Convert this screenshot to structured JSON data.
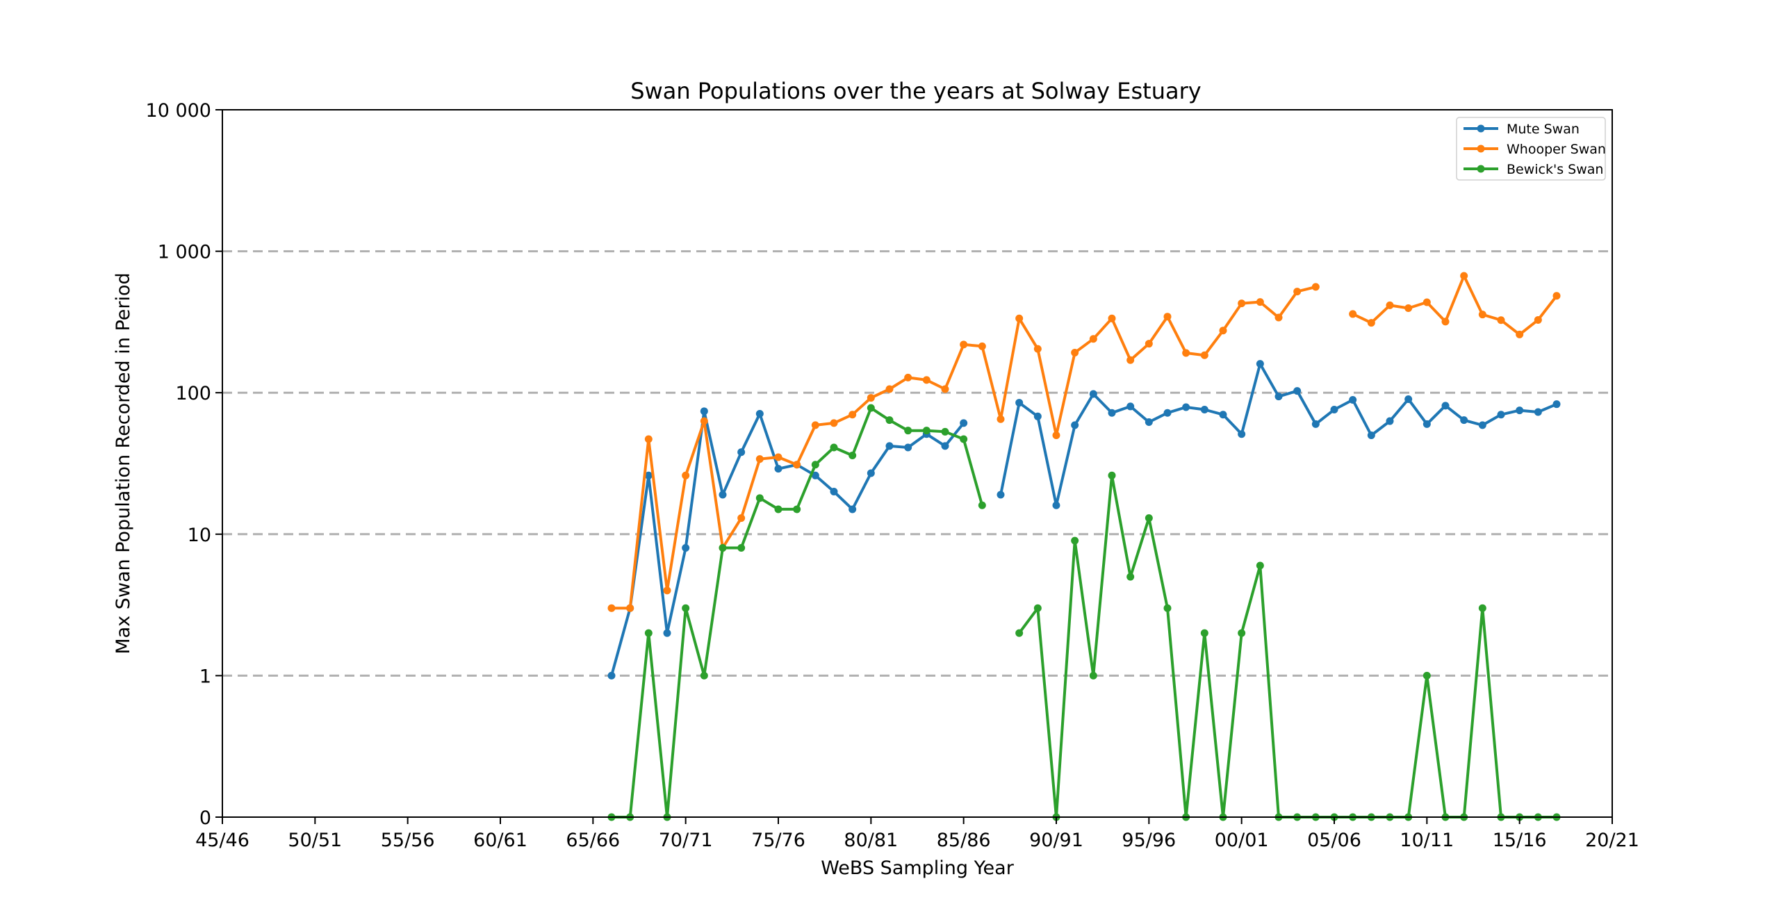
{
  "chart_data": {
    "type": "line",
    "title": "Swan Populations over the years at Solway Estuary",
    "xlabel": "WeBS Sampling Year",
    "ylabel": "Max Swan Population Recorded in Period",
    "y_scale": "symlog",
    "ylim": [
      0,
      10000
    ],
    "grid": "horizontal dashed",
    "legend_position": "top-right",
    "x_ticks": [
      "45/46",
      "50/51",
      "55/56",
      "60/61",
      "65/66",
      "70/71",
      "75/76",
      "80/81",
      "85/86",
      "90/91",
      "95/96",
      "00/01",
      "05/06",
      "10/11",
      "15/16",
      "20/21"
    ],
    "y_ticks": [
      {
        "value": 0,
        "label": "0"
      },
      {
        "value": 1,
        "label": "1"
      },
      {
        "value": 10,
        "label": "10"
      },
      {
        "value": 100,
        "label": "100"
      },
      {
        "value": 1000,
        "label": "1 000"
      },
      {
        "value": 10000,
        "label": "10 000"
      }
    ],
    "x": [
      "66/67",
      "67/68",
      "68/69",
      "69/70",
      "70/71",
      "71/72",
      "72/73",
      "73/74",
      "74/75",
      "75/76",
      "76/77",
      "77/78",
      "78/79",
      "79/80",
      "80/81",
      "81/82",
      "82/83",
      "83/84",
      "84/85",
      "85/86",
      "86/87",
      "87/88",
      "88/89",
      "89/90",
      "90/91",
      "91/92",
      "92/93",
      "93/94",
      "94/95",
      "95/96",
      "96/97",
      "97/98",
      "98/99",
      "99/00",
      "00/01",
      "01/02",
      "02/03",
      "03/04",
      "04/05",
      "05/06",
      "06/07",
      "07/08",
      "08/09",
      "09/10",
      "10/11",
      "11/12",
      "12/13",
      "13/14",
      "14/15",
      "15/16",
      "16/17",
      "17/18"
    ],
    "series": [
      {
        "name": "Mute Swan",
        "color": "#1f77b4",
        "values": [
          1,
          3,
          26,
          2,
          8,
          74,
          19,
          38,
          71,
          29,
          31,
          26,
          20,
          15,
          27,
          42,
          41,
          51,
          42,
          61,
          null,
          19,
          85,
          68,
          16,
          59,
          98,
          72,
          80,
          62,
          72,
          79,
          76,
          70,
          51,
          160,
          94,
          103,
          60,
          76,
          89,
          50,
          63,
          90,
          60,
          81,
          64,
          59,
          70,
          75,
          73,
          83
        ]
      },
      {
        "name": "Whooper Swan",
        "color": "#ff7f0e",
        "values": [
          3,
          3,
          47,
          4,
          26,
          63,
          8,
          13,
          34,
          35,
          31,
          59,
          61,
          70,
          92,
          106,
          128,
          123,
          106,
          219,
          213,
          65,
          335,
          204,
          50,
          192,
          240,
          335,
          170,
          222,
          345,
          191,
          184,
          275,
          428,
          438,
          340,
          519,
          560,
          null,
          360,
          312,
          415,
          396,
          436,
          318,
          670,
          357,
          326,
          258,
          327,
          484
        ]
      },
      {
        "name": "Bewick's Swan",
        "color": "#2ca02c",
        "values": [
          0,
          0,
          2,
          0,
          3,
          1,
          8,
          8,
          18,
          15,
          15,
          31,
          41,
          36,
          78,
          64,
          54,
          54,
          53,
          47,
          16,
          null,
          2,
          3,
          0,
          9,
          1,
          26,
          5,
          13,
          3,
          0,
          2,
          0,
          2,
          6,
          0,
          0,
          0,
          0,
          0,
          0,
          0,
          0,
          1,
          0,
          0,
          3,
          0,
          0,
          0,
          0
        ]
      }
    ]
  }
}
